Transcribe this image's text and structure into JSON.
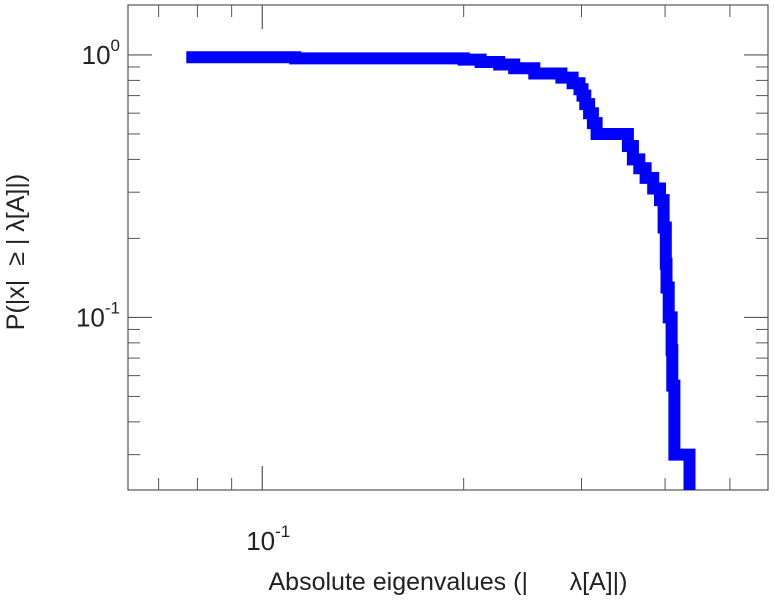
{
  "chart_data": {
    "type": "line",
    "xlabel": "Absolute eigenvalues (|      λ[A]|)",
    "ylabel": "P(|x|  ≥ | λ[A]|)",
    "x_scale": "log",
    "y_scale": "log",
    "xlim": [
      0.063,
      0.57
    ],
    "ylim": [
      0.022,
      1.55
    ],
    "x_major_ticks": [
      {
        "value": 0.1,
        "base": "10",
        "exp": "-1"
      }
    ],
    "y_major_ticks": [
      {
        "value": 1,
        "base": "10",
        "exp": "0"
      },
      {
        "value": 0.1,
        "base": "10",
        "exp": "-1"
      }
    ],
    "grid": false,
    "series": [
      {
        "color": "#0000ff",
        "x": [
          0.077,
          0.112,
          0.2,
          0.212,
          0.226,
          0.238,
          0.255,
          0.28,
          0.291,
          0.298,
          0.301,
          0.304,
          0.308,
          0.312,
          0.316,
          0.345,
          0.352,
          0.358,
          0.366,
          0.374,
          0.384,
          0.393,
          0.398,
          0.401,
          0.402,
          0.405,
          0.409,
          0.41,
          0.413,
          0.435,
          0.435
        ],
        "y": [
          0.98,
          0.97,
          0.96,
          0.94,
          0.92,
          0.89,
          0.85,
          0.82,
          0.78,
          0.74,
          0.7,
          0.65,
          0.6,
          0.55,
          0.5,
          0.5,
          0.45,
          0.4,
          0.37,
          0.34,
          0.31,
          0.28,
          0.22,
          0.16,
          0.13,
          0.1,
          0.075,
          0.055,
          0.03,
          0.03,
          0.022
        ]
      }
    ]
  }
}
